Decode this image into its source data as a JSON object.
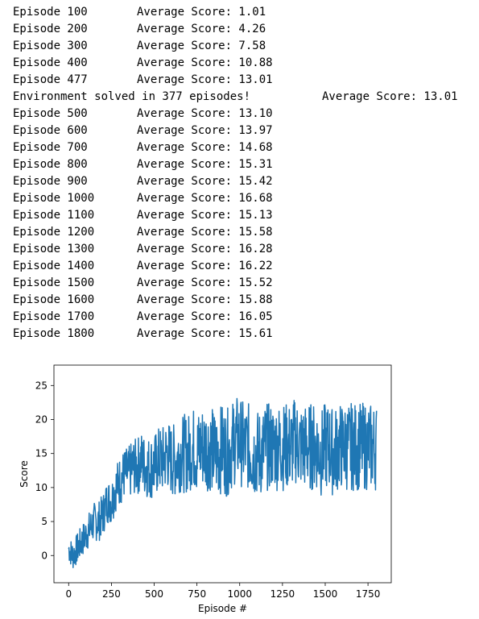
{
  "log": {
    "lines": [
      {
        "episode": "Episode 100",
        "score": "Average Score: 1.01"
      },
      {
        "episode": "Episode 200",
        "score": "Average Score: 4.26"
      },
      {
        "episode": "Episode 300",
        "score": "Average Score: 7.58"
      },
      {
        "episode": "Episode 400",
        "score": "Average Score: 10.88"
      },
      {
        "episode": "Episode 477",
        "score": "Average Score: 13.01"
      },
      {
        "solved": "Environment solved in 377 episodes!",
        "score": "Average Score: 13.01"
      },
      {
        "episode": "Episode 500",
        "score": "Average Score: 13.10"
      },
      {
        "episode": "Episode 600",
        "score": "Average Score: 13.97"
      },
      {
        "episode": "Episode 700",
        "score": "Average Score: 14.68"
      },
      {
        "episode": "Episode 800",
        "score": "Average Score: 15.31"
      },
      {
        "episode": "Episode 900",
        "score": "Average Score: 15.42"
      },
      {
        "episode": "Episode 1000",
        "score": "Average Score: 16.68"
      },
      {
        "episode": "Episode 1100",
        "score": "Average Score: 15.13"
      },
      {
        "episode": "Episode 1200",
        "score": "Average Score: 15.58"
      },
      {
        "episode": "Episode 1300",
        "score": "Average Score: 16.28"
      },
      {
        "episode": "Episode 1400",
        "score": "Average Score: 16.22"
      },
      {
        "episode": "Episode 1500",
        "score": "Average Score: 15.52"
      },
      {
        "episode": "Episode 1600",
        "score": "Average Score: 15.88"
      },
      {
        "episode": "Episode 1700",
        "score": "Average Score: 16.05"
      },
      {
        "episode": "Episode 1800",
        "score": "Average Score: 15.61"
      }
    ]
  },
  "chart_data": {
    "type": "line",
    "xlabel": "Episode #",
    "ylabel": "Score",
    "xlim": [
      -86,
      1886
    ],
    "ylim": [
      -4,
      28
    ],
    "xticks": [
      0,
      250,
      500,
      750,
      1000,
      1250,
      1500,
      1750
    ],
    "yticks": [
      0,
      5,
      10,
      15,
      20,
      25
    ],
    "grid": false,
    "line_color": "#1f77b4",
    "series": [
      {
        "x": [
          0,
          25,
          50,
          75,
          100,
          125,
          150,
          175,
          200,
          225,
          250,
          275,
          300,
          325,
          350,
          375,
          400,
          425,
          450,
          475,
          500,
          525,
          550,
          575,
          600,
          625,
          650,
          675,
          700,
          725,
          750,
          775,
          800,
          825,
          850,
          875,
          900,
          925,
          950,
          975,
          1000,
          1025,
          1050,
          1075,
          1100,
          1125,
          1150,
          1175,
          1200,
          1225,
          1250,
          1275,
          1300,
          1325,
          1350,
          1375,
          1400,
          1425,
          1450,
          1475,
          1500,
          1525,
          1550,
          1575,
          1600,
          1625,
          1650,
          1675,
          1700,
          1725,
          1750,
          1775,
          1800
        ],
        "y": [
          1,
          0,
          1,
          2,
          3,
          4,
          5,
          5,
          6,
          8,
          8,
          10,
          11,
          12,
          12,
          13,
          13,
          14,
          13,
          13,
          13,
          14,
          14,
          15,
          14,
          14,
          15,
          15,
          15,
          16,
          15,
          16,
          16,
          16,
          15,
          15,
          16,
          15,
          16,
          17,
          17,
          16,
          16,
          15,
          15,
          15,
          16,
          16,
          16,
          16,
          16,
          16,
          16,
          17,
          16,
          16,
          16,
          16,
          16,
          15,
          16,
          16,
          15,
          16,
          16,
          16,
          16,
          16,
          16,
          16,
          16,
          16,
          16
        ]
      }
    ]
  }
}
